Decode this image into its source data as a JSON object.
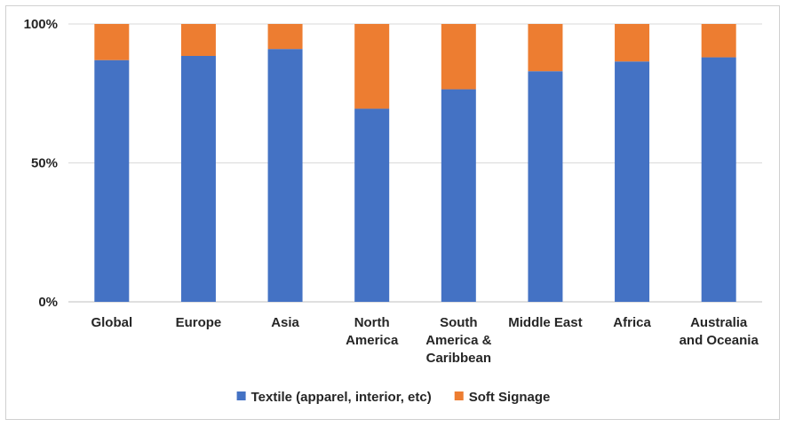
{
  "chart_data": {
    "type": "bar",
    "stacked": true,
    "percent": true,
    "title": "",
    "xlabel": "",
    "ylabel": "",
    "ylim": [
      0,
      100
    ],
    "yticks": [
      {
        "value": 0,
        "label": "0%"
      },
      {
        "value": 50,
        "label": "50%"
      },
      {
        "value": 100,
        "label": "100%"
      }
    ],
    "grid": true,
    "legend_position": "bottom",
    "categories": [
      {
        "label": "Global",
        "lines": [
          "Global"
        ]
      },
      {
        "label": "Europe",
        "lines": [
          "Europe"
        ]
      },
      {
        "label": "Asia",
        "lines": [
          "Asia"
        ]
      },
      {
        "label": "North America",
        "lines": [
          "North",
          "America"
        ]
      },
      {
        "label": "South America & Caribbean",
        "lines": [
          "South",
          "America &",
          "Caribbean"
        ]
      },
      {
        "label": "Middle East",
        "lines": [
          "Middle East"
        ]
      },
      {
        "label": "Africa",
        "lines": [
          "Africa"
        ]
      },
      {
        "label": "Australia and Oceania",
        "lines": [
          "Australia",
          "and Oceania"
        ]
      }
    ],
    "series": [
      {
        "name": "Textile (apparel, interior, etc)",
        "color": "#4472c4",
        "values": [
          87,
          88.5,
          91,
          69.5,
          76.5,
          83,
          86.5,
          88
        ]
      },
      {
        "name": "Soft Signage",
        "color": "#ed7d31",
        "values": [
          13,
          11.5,
          9,
          30.5,
          23.5,
          17,
          13.5,
          12
        ]
      }
    ]
  }
}
